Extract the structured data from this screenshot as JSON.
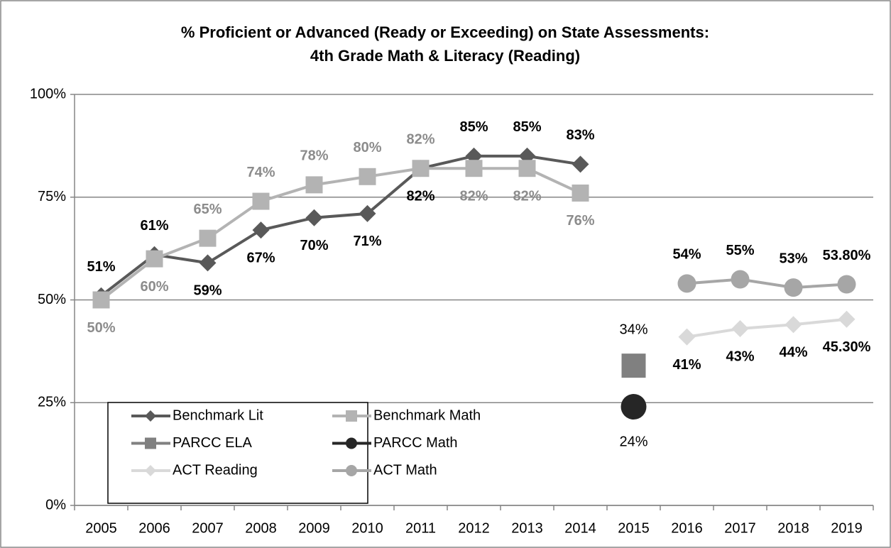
{
  "chart_data": {
    "type": "line",
    "title": "% Proficient or Advanced  (Ready or Exceeding) on State Assessments:",
    "subtitle": "4th Grade Math & Literacy (Reading)",
    "categories": [
      "2005",
      "2006",
      "2007",
      "2008",
      "2009",
      "2010",
      "2011",
      "2012",
      "2013",
      "2014",
      "2015",
      "2016",
      "2017",
      "2018",
      "2019"
    ],
    "ylim": [
      0,
      100
    ],
    "yticks": [
      {
        "value": 0,
        "label": "0%"
      },
      {
        "value": 25,
        "label": "25%"
      },
      {
        "value": 50,
        "label": "50%"
      },
      {
        "value": 75,
        "label": "75%"
      },
      {
        "value": 100,
        "label": "100%"
      }
    ],
    "grid": true,
    "legend": "lower left",
    "series": [
      {
        "name": "Benchmark Lit",
        "color": "#595959",
        "marker": "diamond",
        "label_color": "#000000",
        "label_weight": "bold",
        "values": [
          51,
          61,
          59,
          67,
          70,
          71,
          82,
          85,
          85,
          83,
          null,
          null,
          null,
          null,
          null
        ],
        "value_labels": [
          "51%",
          "61%",
          "59%",
          "67%",
          "70%",
          "71%",
          "82%",
          "85%",
          "85%",
          "83%",
          null,
          null,
          null,
          null,
          null
        ]
      },
      {
        "name": "Benchmark Math",
        "color": "#b3b3b3",
        "marker": "square",
        "label_color": "#8c8c8c",
        "label_weight": "bold",
        "values": [
          50,
          60,
          65,
          74,
          78,
          80,
          82,
          82,
          82,
          76,
          null,
          null,
          null,
          null,
          null
        ],
        "value_labels": [
          "50%",
          "60%",
          "65%",
          "74%",
          "78%",
          "80%",
          "82%",
          "82%",
          "82%",
          "76%",
          null,
          null,
          null,
          null,
          null
        ]
      },
      {
        "name": "PARCC ELA",
        "color": "#808080",
        "marker": "square",
        "label_color": "#000000",
        "label_weight": "normal",
        "values": [
          null,
          null,
          null,
          null,
          null,
          null,
          null,
          null,
          null,
          null,
          34,
          null,
          null,
          null,
          null
        ],
        "value_labels": [
          null,
          null,
          null,
          null,
          null,
          null,
          null,
          null,
          null,
          null,
          "34%",
          null,
          null,
          null,
          null
        ]
      },
      {
        "name": "PARCC Math",
        "color": "#262626",
        "marker": "circle",
        "label_color": "#000000",
        "label_weight": "normal",
        "values": [
          null,
          null,
          null,
          null,
          null,
          null,
          null,
          null,
          null,
          null,
          24,
          null,
          null,
          null,
          null
        ],
        "value_labels": [
          null,
          null,
          null,
          null,
          null,
          null,
          null,
          null,
          null,
          null,
          "24%",
          null,
          null,
          null,
          null
        ]
      },
      {
        "name": "ACT Reading",
        "color": "#d9d9d9",
        "marker": "diamond",
        "label_color": "#000000",
        "label_weight": "bold",
        "values": [
          null,
          null,
          null,
          null,
          null,
          null,
          null,
          null,
          null,
          null,
          null,
          41,
          43,
          44,
          45.3
        ],
        "value_labels": [
          null,
          null,
          null,
          null,
          null,
          null,
          null,
          null,
          null,
          null,
          null,
          "41%",
          "43%",
          "44%",
          "45.30%"
        ]
      },
      {
        "name": "ACT Math",
        "color": "#a6a6a6",
        "marker": "circle",
        "label_color": "#000000",
        "label_weight": "bold",
        "values": [
          null,
          null,
          null,
          null,
          null,
          null,
          null,
          null,
          null,
          null,
          null,
          54,
          55,
          53,
          53.8
        ],
        "value_labels": [
          null,
          null,
          null,
          null,
          null,
          null,
          null,
          null,
          null,
          null,
          null,
          "54%",
          "55%",
          "53%",
          "53.80%"
        ]
      }
    ]
  }
}
